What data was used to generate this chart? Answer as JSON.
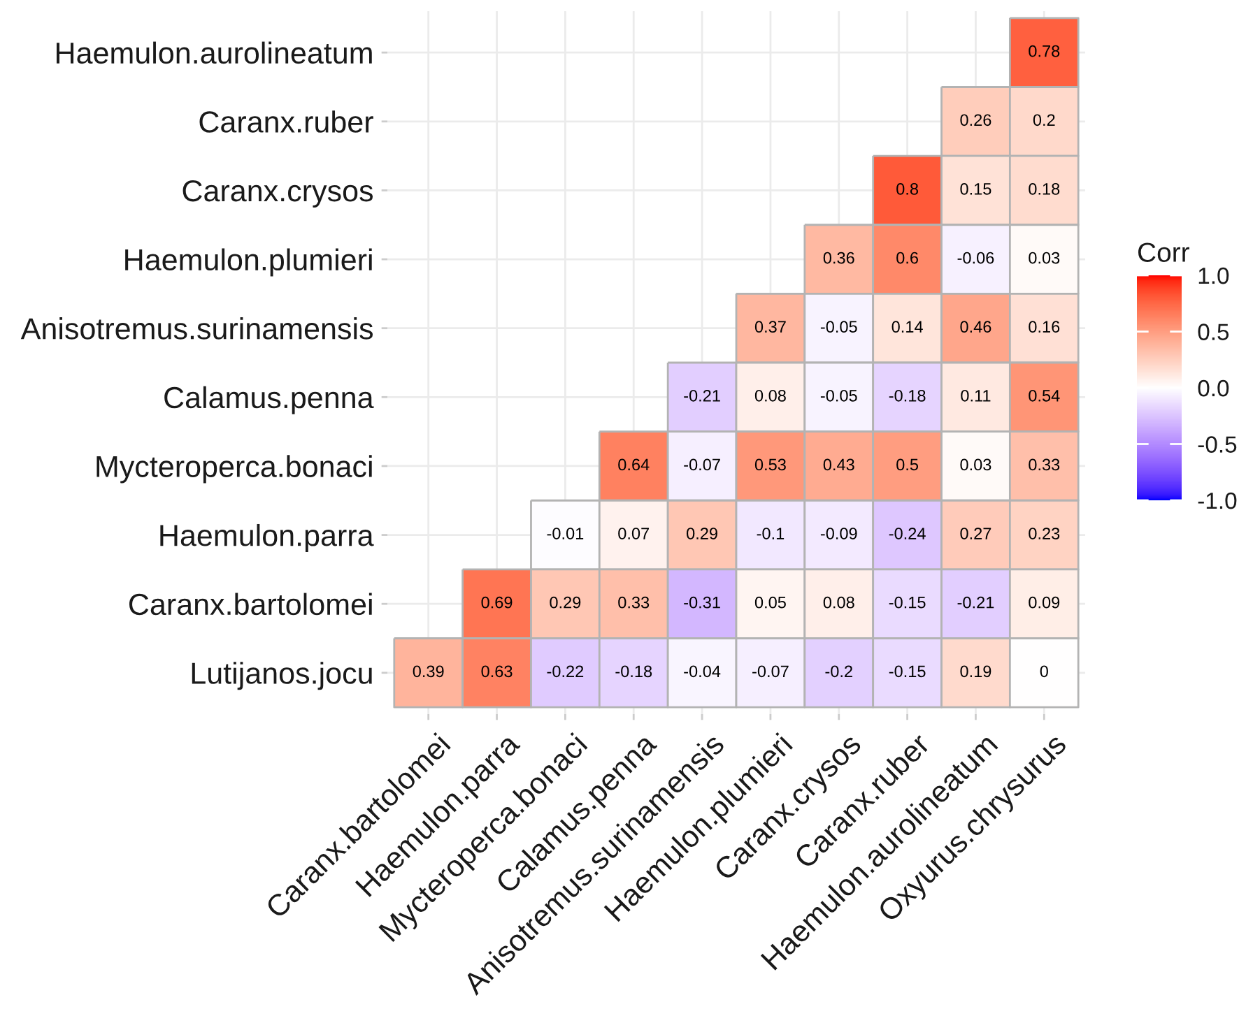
{
  "chart_data": {
    "type": "heatmap",
    "legend_title": "Corr",
    "categories": [
      "Caranx.bartolomei",
      "Haemulon.parra",
      "Mycteroperca.bonaci",
      "Calamus.penna",
      "Anisotremus.surinamensis",
      "Haemulon.plumieri",
      "Caranx.crysos",
      "Caranx.ruber",
      "Haemulon.aurolineatum",
      "Oxyurus.chrysurus"
    ],
    "y_categories": [
      "Haemulon.aurolineatum",
      "Caranx.ruber",
      "Caranx.crysos",
      "Haemulon.plumieri",
      "Anisotremus.surinamensis",
      "Calamus.penna",
      "Mycteroperca.bonaci",
      "Haemulon.parra",
      "Caranx.bartolomei",
      "Lutijanos.jocu"
    ],
    "cells": [
      [
        null,
        null,
        null,
        null,
        null,
        null,
        null,
        null,
        null,
        0.78
      ],
      [
        null,
        null,
        null,
        null,
        null,
        null,
        null,
        null,
        0.26,
        0.2
      ],
      [
        null,
        null,
        null,
        null,
        null,
        null,
        null,
        0.8,
        0.15,
        0.18
      ],
      [
        null,
        null,
        null,
        null,
        null,
        null,
        0.36,
        0.6,
        -0.06,
        0.03
      ],
      [
        null,
        null,
        null,
        null,
        null,
        0.37,
        -0.05,
        0.14,
        0.46,
        0.16
      ],
      [
        null,
        null,
        null,
        null,
        -0.21,
        0.08,
        -0.05,
        -0.18,
        0.11,
        0.54
      ],
      [
        null,
        null,
        null,
        0.64,
        -0.07,
        0.53,
        0.43,
        0.5,
        0.03,
        0.33
      ],
      [
        null,
        null,
        -0.01,
        0.07,
        0.29,
        -0.1,
        -0.09,
        -0.24,
        0.27,
        0.23
      ],
      [
        null,
        0.69,
        0.29,
        0.33,
        -0.31,
        0.05,
        0.08,
        -0.15,
        -0.21,
        0.09
      ],
      [
        0.39,
        0.63,
        -0.22,
        -0.18,
        -0.04,
        -0.07,
        -0.2,
        -0.15,
        0.19,
        0
      ]
    ],
    "clim": [
      -1,
      1
    ],
    "cticks": [
      {
        "value": -1,
        "label": "-1.0"
      },
      {
        "value": -0.5,
        "label": "-0.5"
      },
      {
        "value": 0,
        "label": "0.0"
      },
      {
        "value": 0.5,
        "label": "0.5"
      },
      {
        "value": 1,
        "label": "1.0"
      }
    ],
    "data_labels": true,
    "grid": true
  }
}
